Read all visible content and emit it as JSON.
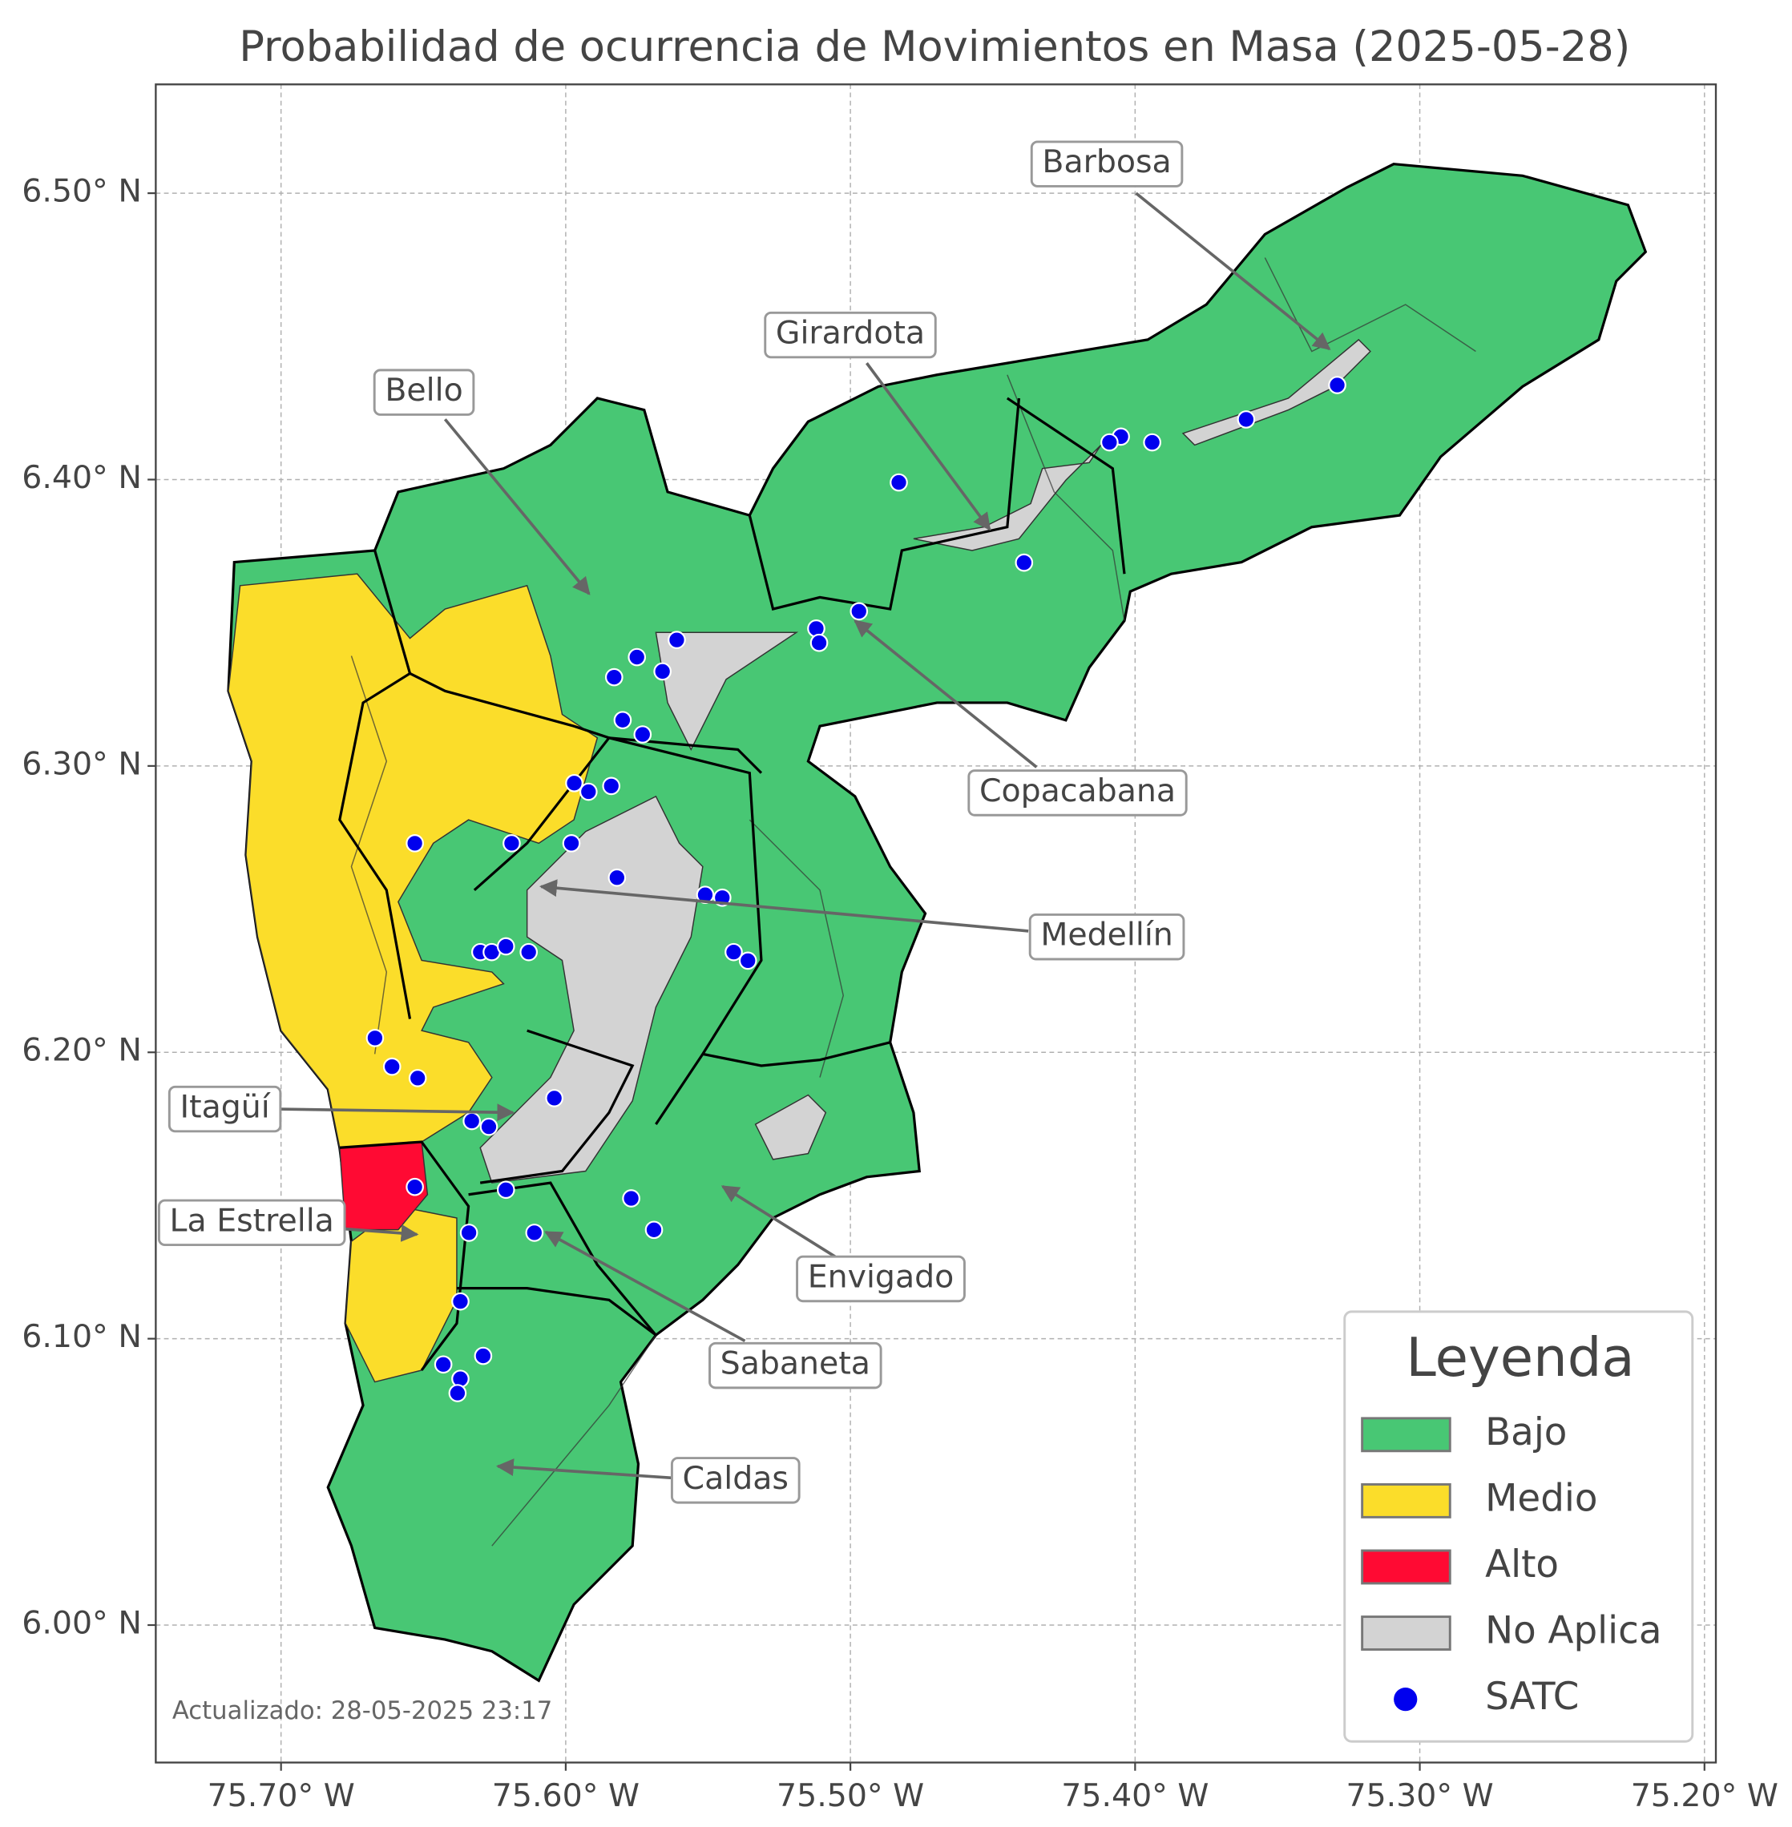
{
  "title": "Probabilidad de ocurrencia de Movimientos en Masa (2025-05-28)",
  "map": {
    "xlim": [
      -75.744,
      -75.196
    ],
    "ylim": [
      5.952,
      6.538
    ],
    "xticks": [
      {
        "value": -75.7,
        "label": "75.70° W"
      },
      {
        "value": -75.6,
        "label": "75.60° W"
      },
      {
        "value": -75.5,
        "label": "75.50° W"
      },
      {
        "value": -75.4,
        "label": "75.40° W"
      },
      {
        "value": -75.3,
        "label": "75.30° W"
      },
      {
        "value": -75.2,
        "label": "75.20° W"
      }
    ],
    "yticks": [
      {
        "value": 6.0,
        "label": "6.00° N"
      },
      {
        "value": 6.1,
        "label": "6.10° N"
      },
      {
        "value": 6.2,
        "label": "6.20° N"
      },
      {
        "value": 6.3,
        "label": "6.30° N"
      },
      {
        "value": 6.4,
        "label": "6.40° N"
      },
      {
        "value": 6.5,
        "label": "6.50° N"
      }
    ],
    "annotations": [
      "Barbosa",
      "Girardota",
      "Bello",
      "Copacabana",
      "Medellín",
      "Itagüí",
      "La Estrella",
      "Envigado",
      "Sabaneta",
      "Caldas"
    ],
    "satc": {
      "name": "SATC",
      "color": "#0000ee",
      "lon": [
        -75.329,
        -75.361,
        -75.394,
        -75.405,
        -75.409,
        -75.483,
        -75.439,
        -75.497,
        -75.512,
        -75.511,
        -75.561,
        -75.575,
        -75.566,
        -75.583,
        -75.58,
        -75.573,
        -75.597,
        -75.592,
        -75.584,
        -75.653,
        -75.619,
        -75.598,
        -75.582,
        -75.551,
        -75.545,
        -75.541,
        -75.536,
        -75.63,
        -75.626,
        -75.621,
        -75.613,
        -75.667,
        -75.661,
        -75.652,
        -75.604,
        -75.633,
        -75.627,
        -75.621,
        -75.653,
        -75.577,
        -75.569,
        -75.634,
        -75.611,
        -75.637,
        -75.643,
        -75.629,
        -75.637,
        -75.638
      ],
      "lat": [
        6.433,
        6.421,
        6.413,
        6.415,
        6.413,
        6.399,
        6.371,
        6.354,
        6.348,
        6.343,
        6.344,
        6.338,
        6.333,
        6.331,
        6.316,
        6.311,
        6.294,
        6.291,
        6.293,
        6.273,
        6.273,
        6.273,
        6.261,
        6.255,
        6.254,
        6.235,
        6.232,
        6.235,
        6.235,
        6.237,
        6.235,
        6.205,
        6.195,
        6.191,
        6.184,
        6.176,
        6.174,
        6.152,
        6.153,
        6.149,
        6.138,
        6.137,
        6.137,
        6.113,
        6.091,
        6.094,
        6.086,
        6.081
      ]
    }
  },
  "legend": {
    "title": "Leyenda",
    "entries": [
      {
        "label": "Bajo",
        "color": "#48c774"
      },
      {
        "label": "Medio",
        "color": "#fbdd2a"
      },
      {
        "label": "Alto",
        "color": "#ff0a33"
      },
      {
        "label": "No Aplica",
        "color": "#d3d3d3"
      },
      {
        "label": "SATC"
      }
    ]
  },
  "footer": "Actualizado: 28-05-2025 23:17"
}
